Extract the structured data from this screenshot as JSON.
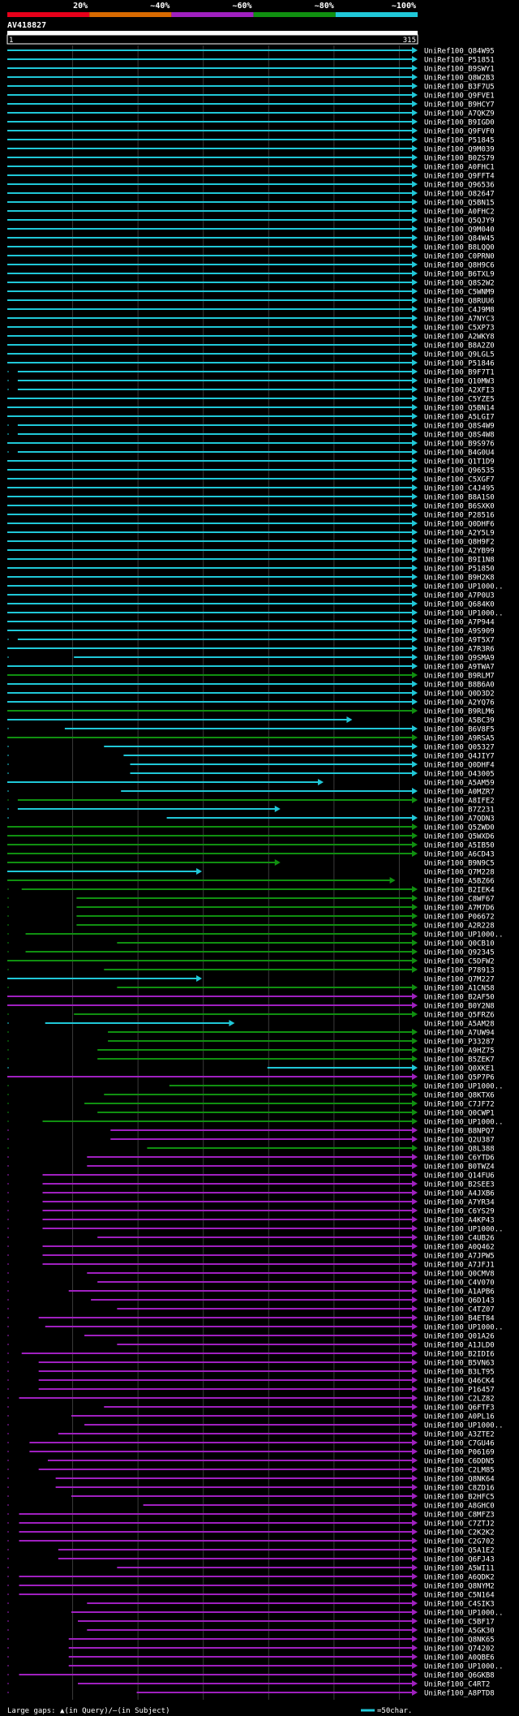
{
  "query_id": "AV418827",
  "ruler": {
    "start_label": "1",
    "end_label": "315"
  },
  "color_legend": [
    {
      "label": "20%",
      "color": "#e8001a"
    },
    {
      "label": "~40%",
      "color": "#d86a00"
    },
    {
      "label": "~60%",
      "color": "#a020c0"
    },
    {
      "label": "~80%",
      "color": "#109010"
    },
    {
      "label": "~100%",
      "color": "#20c8d8"
    }
  ],
  "footer": {
    "gap_text": "Large gaps: ▲(in Query)/–(in Subject)",
    "scale_text": "=50char.",
    "scale_color": "#20c8d8"
  },
  "chart_data": {
    "type": "alignment-overview",
    "query_length": 315,
    "xlim": [
      1,
      315
    ],
    "colors": {
      "c": "#20c8d8",
      "g": "#109010",
      "m": "#a020c0"
    },
    "hits": [
      [
        "UniRef100_Q84W95",
        1,
        315,
        "c",
        1
      ],
      [
        "UniRef100_P51851",
        1,
        315,
        "c",
        1
      ],
      [
        "UniRef100_B9SWY1",
        1,
        315,
        "c",
        1
      ],
      [
        "UniRef100_Q8W2B3",
        1,
        315,
        "c",
        1
      ],
      [
        "UniRef100_B3F7U5",
        1,
        315,
        "c",
        1
      ],
      [
        "UniRef100_Q9FVE1",
        1,
        315,
        "c",
        1
      ],
      [
        "UniRef100_B9HCY7",
        1,
        315,
        "c",
        1
      ],
      [
        "UniRef100_A7QKZ9",
        1,
        315,
        "c",
        1
      ],
      [
        "UniRef100_B9IGD0",
        1,
        315,
        "c",
        1
      ],
      [
        "UniRef100_Q9FVF0",
        1,
        315,
        "c",
        1
      ],
      [
        "UniRef100_P51845",
        1,
        315,
        "c",
        1
      ],
      [
        "UniRef100_Q9M039",
        1,
        315,
        "c",
        1
      ],
      [
        "UniRef100_B0ZS79",
        1,
        315,
        "c",
        1
      ],
      [
        "UniRef100_A0FHC1",
        1,
        315,
        "c",
        1
      ],
      [
        "UniRef100_Q9FFT4",
        1,
        315,
        "c",
        1
      ],
      [
        "UniRef100_Q96536",
        1,
        315,
        "c",
        1
      ],
      [
        "UniRef100_O82647",
        1,
        315,
        "c",
        1
      ],
      [
        "UniRef100_Q5BN15",
        1,
        315,
        "c",
        1
      ],
      [
        "UniRef100_A0FHC2",
        1,
        315,
        "c",
        1
      ],
      [
        "UniRef100_Q5QJY9",
        1,
        315,
        "c",
        1
      ],
      [
        "UniRef100_Q9M040",
        1,
        315,
        "c",
        1
      ],
      [
        "UniRef100_Q84W45",
        1,
        315,
        "c",
        1
      ],
      [
        "UniRef100_B8LQQ0",
        1,
        315,
        "c",
        1
      ],
      [
        "UniRef100_C0PRN0",
        1,
        315,
        "c",
        1
      ],
      [
        "UniRef100_Q8H9C6",
        1,
        315,
        "c",
        1
      ],
      [
        "UniRef100_B6TXL9",
        1,
        315,
        "c",
        1
      ],
      [
        "UniRef100_Q8S2W2",
        1,
        315,
        "c",
        1
      ],
      [
        "UniRef100_C5WNM9",
        1,
        315,
        "c",
        1
      ],
      [
        "UniRef100_Q8RUU6",
        1,
        315,
        "c",
        1
      ],
      [
        "UniRef100_C4J9M8",
        1,
        315,
        "c",
        1
      ],
      [
        "UniRef100_A7NYC3",
        1,
        315,
        "c",
        1
      ],
      [
        "UniRef100_C5XP73",
        1,
        315,
        "c",
        1
      ],
      [
        "UniRef100_A2WKY8",
        1,
        315,
        "c",
        1
      ],
      [
        "UniRef100_B8A2Z0",
        1,
        315,
        "c",
        1
      ],
      [
        "UniRef100_Q9LGL5",
        1,
        315,
        "c",
        1
      ],
      [
        "UniRef100_P51846",
        1,
        315,
        "c",
        1
      ],
      [
        "UniRef100_B9F7T1",
        9,
        315,
        "c",
        1
      ],
      [
        "UniRef100_Q10MW3",
        9,
        315,
        "c",
        1
      ],
      [
        "UniRef100_A2XFI3",
        9,
        315,
        "c",
        1
      ],
      [
        "UniRef100_C5YZE5",
        1,
        315,
        "c",
        1
      ],
      [
        "UniRef100_Q5BN14",
        1,
        315,
        "c",
        1
      ],
      [
        "UniRef100_A5LGI7",
        1,
        315,
        "c",
        1
      ],
      [
        "UniRef100_Q8S4W9",
        9,
        315,
        "c",
        1
      ],
      [
        "UniRef100_Q8S4W8",
        9,
        315,
        "c",
        1
      ],
      [
        "UniRef100_B9S976",
        1,
        315,
        "c",
        1
      ],
      [
        "UniRef100_B4G0U4",
        9,
        315,
        "c",
        1
      ],
      [
        "UniRef100_Q1T1D9",
        1,
        315,
        "c",
        1
      ],
      [
        "UniRef100_Q96535",
        1,
        315,
        "c",
        1
      ],
      [
        "UniRef100_C5XGF7",
        1,
        315,
        "c",
        1
      ],
      [
        "UniRef100_C4J495",
        1,
        315,
        "c",
        1
      ],
      [
        "UniRef100_B8A1S0",
        1,
        315,
        "c",
        1
      ],
      [
        "UniRef100_B6SXK0",
        1,
        315,
        "c",
        1
      ],
      [
        "UniRef100_P28516",
        1,
        315,
        "c",
        1
      ],
      [
        "UniRef100_Q0DHF6",
        1,
        315,
        "c",
        1
      ],
      [
        "UniRef100_A2Y5L9",
        1,
        315,
        "c",
        1
      ],
      [
        "UniRef100_Q8H9F2",
        1,
        315,
        "c",
        1
      ],
      [
        "UniRef100_A2YB99",
        1,
        315,
        "c",
        1
      ],
      [
        "UniRef100_B9I1N8",
        1,
        315,
        "c",
        1
      ],
      [
        "UniRef100_P51850",
        1,
        315,
        "c",
        1
      ],
      [
        "UniRef100_B9H2K8",
        1,
        315,
        "c",
        1
      ],
      [
        "UniRef100_UP1000..",
        1,
        315,
        "c",
        1
      ],
      [
        "UniRef100_A7P0U3",
        1,
        315,
        "c",
        1
      ],
      [
        "UniRef100_Q684K0",
        1,
        315,
        "c",
        1
      ],
      [
        "UniRef100_UP1000..",
        1,
        315,
        "c",
        1
      ],
      [
        "UniRef100_A7P944",
        1,
        315,
        "c",
        1
      ],
      [
        "UniRef100_A9S909",
        1,
        315,
        "c",
        1
      ],
      [
        "UniRef100_A9T5X7",
        9,
        315,
        "c",
        1
      ],
      [
        "UniRef100_A7R3R6",
        1,
        315,
        "c",
        1
      ],
      [
        "UniRef100_Q9SMA9",
        52,
        315,
        "c",
        1
      ],
      [
        "UniRef100_A9TWA7",
        1,
        315,
        "c",
        1
      ],
      [
        "UniRef100_B9RLM7",
        1,
        315,
        "g",
        1
      ],
      [
        "UniRef100_B8B6A0",
        1,
        315,
        "c",
        1
      ],
      [
        "UniRef100_Q0D3D2",
        1,
        315,
        "c",
        1
      ],
      [
        "UniRef100_A2YQ76",
        1,
        315,
        "c",
        1
      ],
      [
        "UniRef100_B9RLM6",
        1,
        315,
        "g",
        1
      ],
      [
        "UniRef100_A5BC39",
        1,
        265,
        "c",
        1
      ],
      [
        "UniRef100_B6V8F5",
        45,
        315,
        "c",
        1
      ],
      [
        "UniRef100_A9RSA5",
        1,
        315,
        "g",
        1
      ],
      [
        "UniRef100_Q05327",
        75,
        315,
        "c",
        1
      ],
      [
        "UniRef100_Q4JIY7",
        90,
        315,
        "c",
        1
      ],
      [
        "UniRef100_Q0DHF4",
        95,
        315,
        "c",
        1
      ],
      [
        "UniRef100_O43005",
        95,
        315,
        "c",
        1
      ],
      [
        "UniRef100_A5AM59",
        1,
        243,
        "c",
        1
      ],
      [
        "UniRef100_A0MZR7",
        88,
        315,
        "c",
        1
      ],
      [
        "UniRef100_A8IFE2",
        9,
        315,
        "g",
        1
      ],
      [
        "UniRef100_B7Z231",
        9,
        210,
        "c",
        1
      ],
      [
        "UniRef100_A7QDN3",
        123,
        315,
        "c",
        1
      ],
      [
        "UniRef100_Q5ZWD0",
        1,
        315,
        "g",
        1
      ],
      [
        "UniRef100_Q5WXD6",
        1,
        315,
        "g",
        1
      ],
      [
        "UniRef100_A5IB50",
        1,
        315,
        "g",
        1
      ],
      [
        "UniRef100_A6CD43",
        1,
        315,
        "g",
        1
      ],
      [
        "UniRef100_B9N9C5",
        1,
        210,
        "g",
        1
      ],
      [
        "UniRef100_Q7M228",
        1,
        150,
        "c",
        1
      ],
      [
        "UniRef100_A5BZ66",
        1,
        298,
        "g",
        1
      ],
      [
        "UniRef100_B2IEK4",
        12,
        315,
        "g",
        1
      ],
      [
        "UniRef100_C8WF67",
        54,
        315,
        "g",
        1
      ],
      [
        "UniRef100_A7M7D6",
        54,
        315,
        "g",
        1
      ],
      [
        "UniRef100_P06672",
        54,
        315,
        "g",
        1
      ],
      [
        "UniRef100_A2R228",
        54,
        315,
        "g",
        1
      ],
      [
        "UniRef100_UP1000..",
        15,
        315,
        "g",
        1
      ],
      [
        "UniRef100_Q0CB10",
        85,
        315,
        "g",
        1
      ],
      [
        "UniRef100_Q92345",
        15,
        315,
        "g",
        1
      ],
      [
        "UniRef100_C5DFW2",
        1,
        315,
        "g",
        1
      ],
      [
        "UniRef100_P78913",
        75,
        315,
        "g",
        1
      ],
      [
        "UniRef100_Q7M227",
        1,
        150,
        "c",
        1
      ],
      [
        "UniRef100_A1CN58",
        85,
        315,
        "g",
        1
      ],
      [
        "UniRef100_B2AF50",
        1,
        315,
        "m",
        1
      ],
      [
        "UniRef100_B0Y2N8",
        1,
        315,
        "m",
        1
      ],
      [
        "UniRef100_Q5FRZ6",
        52,
        315,
        "g",
        1
      ],
      [
        "UniRef100_A5AM28",
        30,
        175,
        "c",
        1
      ],
      [
        "UniRef100_A7UW94",
        78,
        315,
        "g",
        1
      ],
      [
        "UniRef100_P33287",
        78,
        315,
        "g",
        1
      ],
      [
        "UniRef100_A9HZ75",
        70,
        315,
        "g",
        1
      ],
      [
        "UniRef100_B5ZEK7",
        70,
        315,
        "g",
        1
      ],
      [
        "UniRef100_Q0XKE1",
        200,
        315,
        "c",
        1
      ],
      [
        "UniRef100_Q5P7P6",
        1,
        315,
        "m",
        1
      ],
      [
        "UniRef100_UP1000..",
        125,
        315,
        "g",
        1
      ],
      [
        "UniRef100_Q8KTX6",
        75,
        315,
        "g",
        1
      ],
      [
        "UniRef100_C7JF72",
        60,
        315,
        "g",
        1
      ],
      [
        "UniRef100_Q0CWP1",
        70,
        315,
        "g",
        1
      ],
      [
        "UniRef100_UP1000..",
        28,
        315,
        "g",
        1
      ],
      [
        "UniRef100_B8NPQ7",
        80,
        315,
        "m",
        1
      ],
      [
        "UniRef100_Q2U387",
        80,
        315,
        "m",
        1
      ],
      [
        "UniRef100_Q8L388",
        108,
        315,
        "g",
        1
      ],
      [
        "UniRef100_C6YTD6",
        62,
        315,
        "m",
        1
      ],
      [
        "UniRef100_B0TWZ4",
        62,
        315,
        "m",
        1
      ],
      [
        "UniRef100_Q14FU6",
        28,
        315,
        "m",
        1
      ],
      [
        "UniRef100_B2SEE3",
        28,
        315,
        "m",
        1
      ],
      [
        "UniRef100_A4JXB6",
        28,
        315,
        "m",
        1
      ],
      [
        "UniRef100_A7YR34",
        28,
        315,
        "m",
        1
      ],
      [
        "UniRef100_C6YS29",
        28,
        315,
        "m",
        1
      ],
      [
        "UniRef100_A4KP43",
        28,
        315,
        "m",
        1
      ],
      [
        "UniRef100_UP1000..",
        28,
        315,
        "m",
        1
      ],
      [
        "UniRef100_C4UB26",
        70,
        315,
        "m",
        1
      ],
      [
        "UniRef100_A0Q462",
        28,
        315,
        "m",
        1
      ],
      [
        "UniRef100_A7JPW5",
        28,
        315,
        "m",
        1
      ],
      [
        "UniRef100_A7JFJ1",
        28,
        315,
        "m",
        1
      ],
      [
        "UniRef100_Q0CMV8",
        62,
        315,
        "m",
        1
      ],
      [
        "UniRef100_C4V070",
        70,
        315,
        "m",
        1
      ],
      [
        "UniRef100_A1APB6",
        48,
        315,
        "m",
        1
      ],
      [
        "UniRef100_Q6D143",
        65,
        315,
        "m",
        1
      ],
      [
        "UniRef100_C4TZ07",
        85,
        315,
        "m",
        1
      ],
      [
        "UniRef100_B4ET84",
        25,
        315,
        "m",
        1
      ],
      [
        "UniRef100_UP1000..",
        30,
        315,
        "m",
        1
      ],
      [
        "UniRef100_Q01A26",
        60,
        315,
        "m",
        1
      ],
      [
        "UniRef100_A1JLD0",
        85,
        315,
        "m",
        1
      ],
      [
        "UniRef100_B2IDI6",
        12,
        315,
        "m",
        1
      ],
      [
        "UniRef100_B5VN63",
        25,
        315,
        "m",
        1
      ],
      [
        "UniRef100_B3LT95",
        25,
        315,
        "m",
        1
      ],
      [
        "UniRef100_Q46CK4",
        25,
        315,
        "m",
        1
      ],
      [
        "UniRef100_P16457",
        25,
        315,
        "m",
        1
      ],
      [
        "UniRef100_C2LZ82",
        10,
        315,
        "m",
        1
      ],
      [
        "UniRef100_Q6FTF3",
        75,
        315,
        "m",
        1
      ],
      [
        "UniRef100_A0PL16",
        50,
        315,
        "m",
        1
      ],
      [
        "UniRef100_UP1000..",
        60,
        315,
        "m",
        1
      ],
      [
        "UniRef100_A3ZTE2",
        40,
        315,
        "m",
        1
      ],
      [
        "UniRef100_C7GU46",
        18,
        315,
        "m",
        1
      ],
      [
        "UniRef100_P06169",
        18,
        315,
        "m",
        1
      ],
      [
        "UniRef100_C6DDN5",
        32,
        315,
        "m",
        1
      ],
      [
        "UniRef100_C2LM85",
        25,
        315,
        "m",
        1
      ],
      [
        "UniRef100_Q8NK64",
        38,
        315,
        "m",
        1
      ],
      [
        "UniRef100_C8ZD16",
        38,
        315,
        "m",
        1
      ],
      [
        "UniRef100_B2HFC5",
        50,
        315,
        "m",
        1
      ],
      [
        "UniRef100_A8GHC0",
        105,
        315,
        "m",
        1
      ],
      [
        "UniRef100_C8MFZ3",
        10,
        315,
        "m",
        1
      ],
      [
        "UniRef100_C7ZTJ2",
        10,
        315,
        "m",
        1
      ],
      [
        "UniRef100_C2K2K2",
        10,
        315,
        "m",
        1
      ],
      [
        "UniRef100_C2G702",
        10,
        315,
        "m",
        1
      ],
      [
        "UniRef100_Q5A1E2",
        40,
        315,
        "m",
        1
      ],
      [
        "UniRef100_Q6FJ43",
        40,
        315,
        "m",
        1
      ],
      [
        "UniRef100_A5WI11",
        85,
        315,
        "m",
        1
      ],
      [
        "UniRef100_A6QDK2",
        10,
        315,
        "m",
        1
      ],
      [
        "UniRef100_Q8NYM2",
        10,
        315,
        "m",
        1
      ],
      [
        "UniRef100_C5N164",
        10,
        315,
        "m",
        1
      ],
      [
        "UniRef100_C4SIK3",
        62,
        315,
        "m",
        1
      ],
      [
        "UniRef100_UP1000..",
        50,
        315,
        "m",
        1
      ],
      [
        "UniRef100_C5BF17",
        55,
        315,
        "m",
        1
      ],
      [
        "UniRef100_A5GK30",
        62,
        315,
        "m",
        1
      ],
      [
        "UniRef100_Q8NK65",
        48,
        315,
        "m",
        1
      ],
      [
        "UniRef100_Q74202",
        48,
        315,
        "m",
        1
      ],
      [
        "UniRef100_A0QBE6",
        48,
        315,
        "m",
        1
      ],
      [
        "UniRef100_UP1000..",
        48,
        315,
        "m",
        1
      ],
      [
        "UniRef100_Q6GKB8",
        10,
        315,
        "m",
        1
      ],
      [
        "UniRef100_C4RT2",
        55,
        315,
        "m",
        1
      ],
      [
        "UniRef100_A8PTD8",
        100,
        315,
        "m",
        1
      ]
    ]
  }
}
